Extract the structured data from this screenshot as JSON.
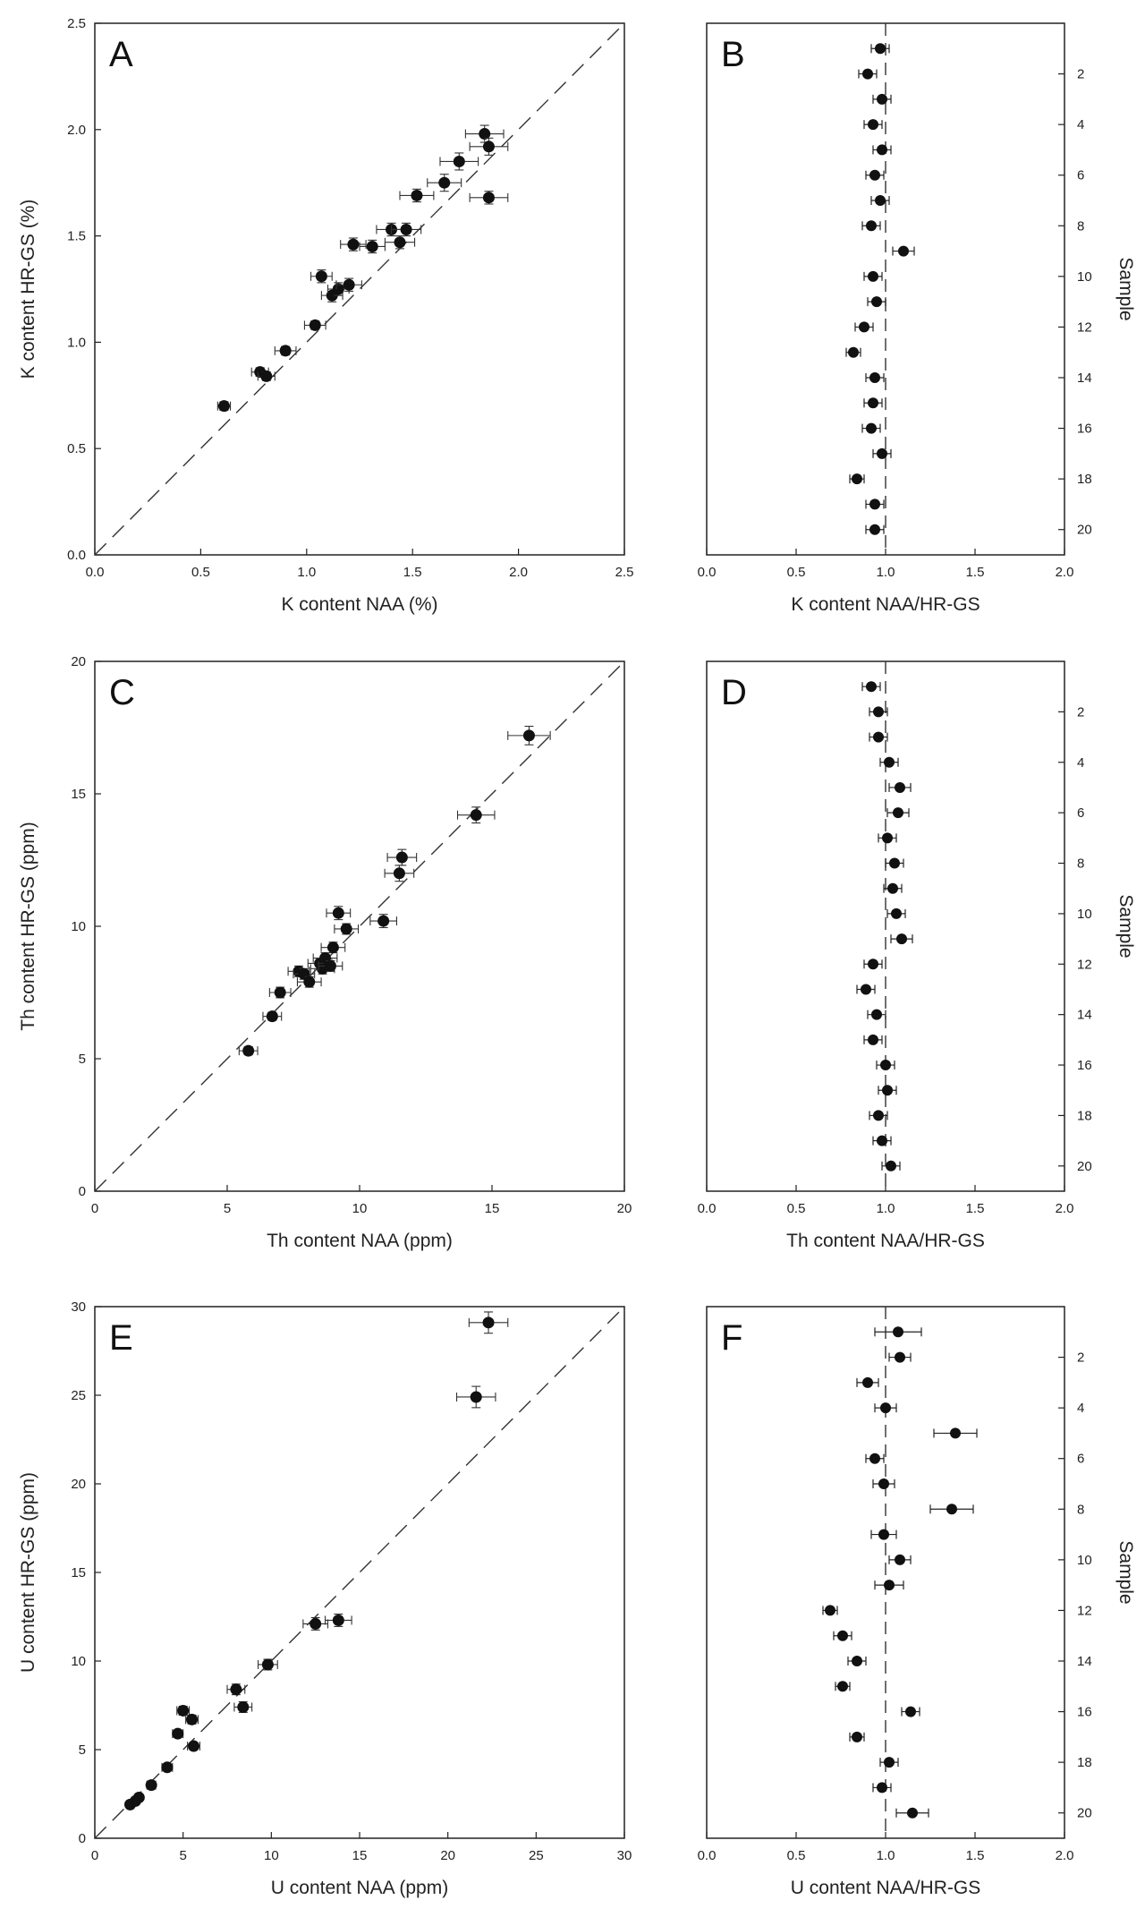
{
  "chart_data": [
    {
      "id": "A",
      "type": "scatter",
      "panel_label": "A",
      "xlabel": "K content NAA (%)",
      "ylabel": "K content HR-GS (%)",
      "xlim": [
        0,
        2.5
      ],
      "ylim": [
        0,
        2.5
      ],
      "xticks": [
        0,
        0.5,
        1.0,
        1.5,
        2.0,
        2.5
      ],
      "xtick_labels": [
        "0.0",
        "0.5",
        "1.0",
        "1.5",
        "2.0",
        "2.5"
      ],
      "yticks": [
        0,
        0.5,
        1.0,
        1.5,
        2.0,
        2.5
      ],
      "ytick_labels": [
        "0.0",
        "0.5",
        "1.0",
        "1.5",
        "2.0",
        "2.5"
      ],
      "reference_line": "1:1 dashed",
      "points": [
        {
          "x": 0.61,
          "y": 0.7,
          "xerr": 0.03,
          "yerr": 0.02
        },
        {
          "x": 0.78,
          "y": 0.86,
          "xerr": 0.04,
          "yerr": 0.02
        },
        {
          "x": 0.81,
          "y": 0.84,
          "xerr": 0.04,
          "yerr": 0.02
        },
        {
          "x": 0.9,
          "y": 0.96,
          "xerr": 0.05,
          "yerr": 0.02
        },
        {
          "x": 1.04,
          "y": 1.08,
          "xerr": 0.05,
          "yerr": 0.02
        },
        {
          "x": 1.07,
          "y": 1.31,
          "xerr": 0.05,
          "yerr": 0.03
        },
        {
          "x": 1.12,
          "y": 1.22,
          "xerr": 0.05,
          "yerr": 0.03
        },
        {
          "x": 1.15,
          "y": 1.25,
          "xerr": 0.05,
          "yerr": 0.03
        },
        {
          "x": 1.2,
          "y": 1.27,
          "xerr": 0.06,
          "yerr": 0.03
        },
        {
          "x": 1.22,
          "y": 1.46,
          "xerr": 0.06,
          "yerr": 0.03
        },
        {
          "x": 1.31,
          "y": 1.45,
          "xerr": 0.06,
          "yerr": 0.03
        },
        {
          "x": 1.4,
          "y": 1.53,
          "xerr": 0.07,
          "yerr": 0.03
        },
        {
          "x": 1.47,
          "y": 1.53,
          "xerr": 0.07,
          "yerr": 0.03
        },
        {
          "x": 1.44,
          "y": 1.47,
          "xerr": 0.07,
          "yerr": 0.03
        },
        {
          "x": 1.52,
          "y": 1.69,
          "xerr": 0.08,
          "yerr": 0.03
        },
        {
          "x": 1.65,
          "y": 1.75,
          "xerr": 0.08,
          "yerr": 0.04
        },
        {
          "x": 1.72,
          "y": 1.85,
          "xerr": 0.09,
          "yerr": 0.04
        },
        {
          "x": 1.84,
          "y": 1.98,
          "xerr": 0.09,
          "yerr": 0.04
        },
        {
          "x": 1.86,
          "y": 1.92,
          "xerr": 0.09,
          "yerr": 0.04
        },
        {
          "x": 1.86,
          "y": 1.68,
          "xerr": 0.09,
          "yerr": 0.03
        }
      ]
    },
    {
      "id": "B",
      "type": "scatter",
      "panel_label": "B",
      "xlabel": "K content NAA/HR-GS",
      "ylabel": "Sample",
      "xlim": [
        0,
        2.0
      ],
      "ylim": [
        21,
        0
      ],
      "xticks": [
        0,
        0.5,
        1.0,
        1.5,
        2.0
      ],
      "xtick_labels": [
        "0.0",
        "0.5",
        "1.0",
        "1.5",
        "2.0"
      ],
      "yticks": [
        2,
        4,
        6,
        8,
        10,
        12,
        14,
        16,
        18,
        20
      ],
      "ytick_labels": [
        "2",
        "4",
        "6",
        "8",
        "10",
        "12",
        "14",
        "16",
        "18",
        "20"
      ],
      "reference_line": "x = 1 dashed",
      "points": [
        {
          "sample": 1,
          "value": 0.97,
          "err": 0.05
        },
        {
          "sample": 2,
          "value": 0.9,
          "err": 0.05
        },
        {
          "sample": 3,
          "value": 0.98,
          "err": 0.05
        },
        {
          "sample": 4,
          "value": 0.93,
          "err": 0.05
        },
        {
          "sample": 5,
          "value": 0.98,
          "err": 0.05
        },
        {
          "sample": 6,
          "value": 0.94,
          "err": 0.05
        },
        {
          "sample": 7,
          "value": 0.97,
          "err": 0.05
        },
        {
          "sample": 8,
          "value": 0.92,
          "err": 0.05
        },
        {
          "sample": 9,
          "value": 1.1,
          "err": 0.06
        },
        {
          "sample": 10,
          "value": 0.93,
          "err": 0.05
        },
        {
          "sample": 11,
          "value": 0.95,
          "err": 0.05
        },
        {
          "sample": 12,
          "value": 0.88,
          "err": 0.05
        },
        {
          "sample": 13,
          "value": 0.82,
          "err": 0.04
        },
        {
          "sample": 14,
          "value": 0.94,
          "err": 0.05
        },
        {
          "sample": 15,
          "value": 0.93,
          "err": 0.05
        },
        {
          "sample": 16,
          "value": 0.92,
          "err": 0.05
        },
        {
          "sample": 17,
          "value": 0.98,
          "err": 0.05
        },
        {
          "sample": 18,
          "value": 0.84,
          "err": 0.04
        },
        {
          "sample": 19,
          "value": 0.94,
          "err": 0.05
        },
        {
          "sample": 20,
          "value": 0.94,
          "err": 0.05
        }
      ]
    },
    {
      "id": "C",
      "type": "scatter",
      "panel_label": "C",
      "xlabel": "Th content NAA (ppm)",
      "ylabel": "Th content HR-GS (ppm)",
      "xlim": [
        0,
        20
      ],
      "ylim": [
        0,
        20
      ],
      "xticks": [
        0,
        5,
        10,
        15,
        20
      ],
      "xtick_labels": [
        "0",
        "5",
        "10",
        "15",
        "20"
      ],
      "yticks": [
        0,
        5,
        10,
        15,
        20
      ],
      "ytick_labels": [
        "0",
        "5",
        "10",
        "15",
        "20"
      ],
      "reference_line": "1:1 dashed",
      "points": [
        {
          "x": 5.8,
          "y": 5.3,
          "xerr": 0.35,
          "yerr": 0.15
        },
        {
          "x": 6.7,
          "y": 6.6,
          "xerr": 0.35,
          "yerr": 0.15
        },
        {
          "x": 7.0,
          "y": 7.5,
          "xerr": 0.4,
          "yerr": 0.2
        },
        {
          "x": 7.7,
          "y": 8.3,
          "xerr": 0.4,
          "yerr": 0.2
        },
        {
          "x": 7.9,
          "y": 8.2,
          "xerr": 0.4,
          "yerr": 0.2
        },
        {
          "x": 8.1,
          "y": 7.9,
          "xerr": 0.45,
          "yerr": 0.2
        },
        {
          "x": 8.5,
          "y": 8.6,
          "xerr": 0.45,
          "yerr": 0.2
        },
        {
          "x": 8.6,
          "y": 8.4,
          "xerr": 0.45,
          "yerr": 0.2
        },
        {
          "x": 8.7,
          "y": 8.8,
          "xerr": 0.45,
          "yerr": 0.2
        },
        {
          "x": 8.9,
          "y": 8.5,
          "xerr": 0.45,
          "yerr": 0.2
        },
        {
          "x": 9.0,
          "y": 9.2,
          "xerr": 0.45,
          "yerr": 0.2
        },
        {
          "x": 9.2,
          "y": 10.5,
          "xerr": 0.45,
          "yerr": 0.25
        },
        {
          "x": 9.5,
          "y": 9.9,
          "xerr": 0.45,
          "yerr": 0.2
        },
        {
          "x": 10.9,
          "y": 10.2,
          "xerr": 0.5,
          "yerr": 0.25
        },
        {
          "x": 11.5,
          "y": 12.0,
          "xerr": 0.55,
          "yerr": 0.3
        },
        {
          "x": 11.6,
          "y": 12.6,
          "xerr": 0.55,
          "yerr": 0.3
        },
        {
          "x": 14.4,
          "y": 14.2,
          "xerr": 0.7,
          "yerr": 0.3
        },
        {
          "x": 16.4,
          "y": 17.2,
          "xerr": 0.8,
          "yerr": 0.35
        }
      ]
    },
    {
      "id": "D",
      "type": "scatter",
      "panel_label": "D",
      "xlabel": "Th content NAA/HR-GS",
      "ylabel": "Sample",
      "xlim": [
        0,
        2.0
      ],
      "ylim": [
        21,
        0
      ],
      "xticks": [
        0,
        0.5,
        1.0,
        1.5,
        2.0
      ],
      "xtick_labels": [
        "0.0",
        "0.5",
        "1.0",
        "1.5",
        "2.0"
      ],
      "yticks": [
        2,
        4,
        6,
        8,
        10,
        12,
        14,
        16,
        18,
        20
      ],
      "ytick_labels": [
        "2",
        "4",
        "6",
        "8",
        "10",
        "12",
        "14",
        "16",
        "18",
        "20"
      ],
      "reference_line": "x = 1 dashed",
      "points": [
        {
          "sample": 1,
          "value": 0.92,
          "err": 0.05
        },
        {
          "sample": 2,
          "value": 0.96,
          "err": 0.05
        },
        {
          "sample": 3,
          "value": 0.96,
          "err": 0.05
        },
        {
          "sample": 4,
          "value": 1.02,
          "err": 0.05
        },
        {
          "sample": 5,
          "value": 1.08,
          "err": 0.06
        },
        {
          "sample": 6,
          "value": 1.07,
          "err": 0.06
        },
        {
          "sample": 7,
          "value": 1.01,
          "err": 0.05
        },
        {
          "sample": 8,
          "value": 1.05,
          "err": 0.05
        },
        {
          "sample": 9,
          "value": 1.04,
          "err": 0.05
        },
        {
          "sample": 10,
          "value": 1.06,
          "err": 0.05
        },
        {
          "sample": 11,
          "value": 1.09,
          "err": 0.06
        },
        {
          "sample": 12,
          "value": 0.93,
          "err": 0.05
        },
        {
          "sample": 13,
          "value": 0.89,
          "err": 0.05
        },
        {
          "sample": 14,
          "value": 0.95,
          "err": 0.05
        },
        {
          "sample": 15,
          "value": 0.93,
          "err": 0.05
        },
        {
          "sample": 16,
          "value": 1.0,
          "err": 0.05
        },
        {
          "sample": 17,
          "value": 1.01,
          "err": 0.05
        },
        {
          "sample": 18,
          "value": 0.96,
          "err": 0.05
        },
        {
          "sample": 19,
          "value": 0.98,
          "err": 0.05
        },
        {
          "sample": 20,
          "value": 1.03,
          "err": 0.05
        }
      ]
    },
    {
      "id": "E",
      "type": "scatter",
      "panel_label": "E",
      "xlabel": "U content NAA (ppm)",
      "ylabel": "U content HR-GS (ppm)",
      "xlim": [
        0,
        30
      ],
      "ylim": [
        0,
        30
      ],
      "xticks": [
        0,
        5,
        10,
        15,
        20,
        25,
        30
      ],
      "xtick_labels": [
        "0",
        "5",
        "10",
        "15",
        "20",
        "25",
        "30"
      ],
      "yticks": [
        0,
        5,
        10,
        15,
        20,
        25,
        30
      ],
      "ytick_labels": [
        "0",
        "5",
        "10",
        "15",
        "20",
        "25",
        "30"
      ],
      "reference_line": "1:1 dashed",
      "points": [
        {
          "x": 2.0,
          "y": 1.9,
          "xerr": 0.2,
          "yerr": 0.1
        },
        {
          "x": 2.3,
          "y": 2.1,
          "xerr": 0.2,
          "yerr": 0.1
        },
        {
          "x": 2.5,
          "y": 2.3,
          "xerr": 0.2,
          "yerr": 0.1
        },
        {
          "x": 3.2,
          "y": 3.0,
          "xerr": 0.25,
          "yerr": 0.15
        },
        {
          "x": 4.1,
          "y": 4.0,
          "xerr": 0.3,
          "yerr": 0.15
        },
        {
          "x": 4.7,
          "y": 5.9,
          "xerr": 0.3,
          "yerr": 0.2
        },
        {
          "x": 5.0,
          "y": 7.2,
          "xerr": 0.35,
          "yerr": 0.25
        },
        {
          "x": 5.6,
          "y": 5.2,
          "xerr": 0.35,
          "yerr": 0.2
        },
        {
          "x": 5.5,
          "y": 6.7,
          "xerr": 0.35,
          "yerr": 0.25
        },
        {
          "x": 8.0,
          "y": 8.4,
          "xerr": 0.5,
          "yerr": 0.3
        },
        {
          "x": 8.4,
          "y": 7.4,
          "xerr": 0.5,
          "yerr": 0.3
        },
        {
          "x": 9.8,
          "y": 9.8,
          "xerr": 0.55,
          "yerr": 0.3
        },
        {
          "x": 12.5,
          "y": 12.1,
          "xerr": 0.7,
          "yerr": 0.35
        },
        {
          "x": 13.8,
          "y": 12.3,
          "xerr": 0.75,
          "yerr": 0.35
        },
        {
          "x": 21.6,
          "y": 24.9,
          "xerr": 1.1,
          "yerr": 0.6
        },
        {
          "x": 22.3,
          "y": 29.1,
          "xerr": 1.1,
          "yerr": 0.6
        }
      ]
    },
    {
      "id": "F",
      "type": "scatter",
      "panel_label": "F",
      "xlabel": "U content NAA/HR-GS",
      "ylabel": "Sample",
      "xlim": [
        0,
        2.0
      ],
      "ylim": [
        21,
        0
      ],
      "xticks": [
        0,
        0.5,
        1.0,
        1.5,
        2.0
      ],
      "xtick_labels": [
        "0.0",
        "0.5",
        "1.0",
        "1.5",
        "2.0"
      ],
      "yticks": [
        2,
        4,
        6,
        8,
        10,
        12,
        14,
        16,
        18,
        20
      ],
      "ytick_labels": [
        "2",
        "4",
        "6",
        "8",
        "10",
        "12",
        "14",
        "16",
        "18",
        "20"
      ],
      "reference_line": "x = 1 dashed",
      "points": [
        {
          "sample": 1,
          "value": 1.07,
          "err": 0.13
        },
        {
          "sample": 2,
          "value": 1.08,
          "err": 0.06
        },
        {
          "sample": 3,
          "value": 0.9,
          "err": 0.06
        },
        {
          "sample": 4,
          "value": 1.0,
          "err": 0.06
        },
        {
          "sample": 5,
          "value": 1.39,
          "err": 0.12
        },
        {
          "sample": 6,
          "value": 0.94,
          "err": 0.05
        },
        {
          "sample": 7,
          "value": 0.99,
          "err": 0.06
        },
        {
          "sample": 8,
          "value": 1.37,
          "err": 0.12
        },
        {
          "sample": 9,
          "value": 0.99,
          "err": 0.07
        },
        {
          "sample": 10,
          "value": 1.08,
          "err": 0.06
        },
        {
          "sample": 11,
          "value": 1.02,
          "err": 0.08
        },
        {
          "sample": 12,
          "value": 0.69,
          "err": 0.04
        },
        {
          "sample": 13,
          "value": 0.76,
          "err": 0.05
        },
        {
          "sample": 14,
          "value": 0.84,
          "err": 0.05
        },
        {
          "sample": 15,
          "value": 0.76,
          "err": 0.04
        },
        {
          "sample": 16,
          "value": 1.14,
          "err": 0.05
        },
        {
          "sample": 17,
          "value": 0.84,
          "err": 0.04
        },
        {
          "sample": 18,
          "value": 1.02,
          "err": 0.05
        },
        {
          "sample": 19,
          "value": 0.98,
          "err": 0.05
        },
        {
          "sample": 20,
          "value": 1.15,
          "err": 0.09
        }
      ]
    }
  ]
}
